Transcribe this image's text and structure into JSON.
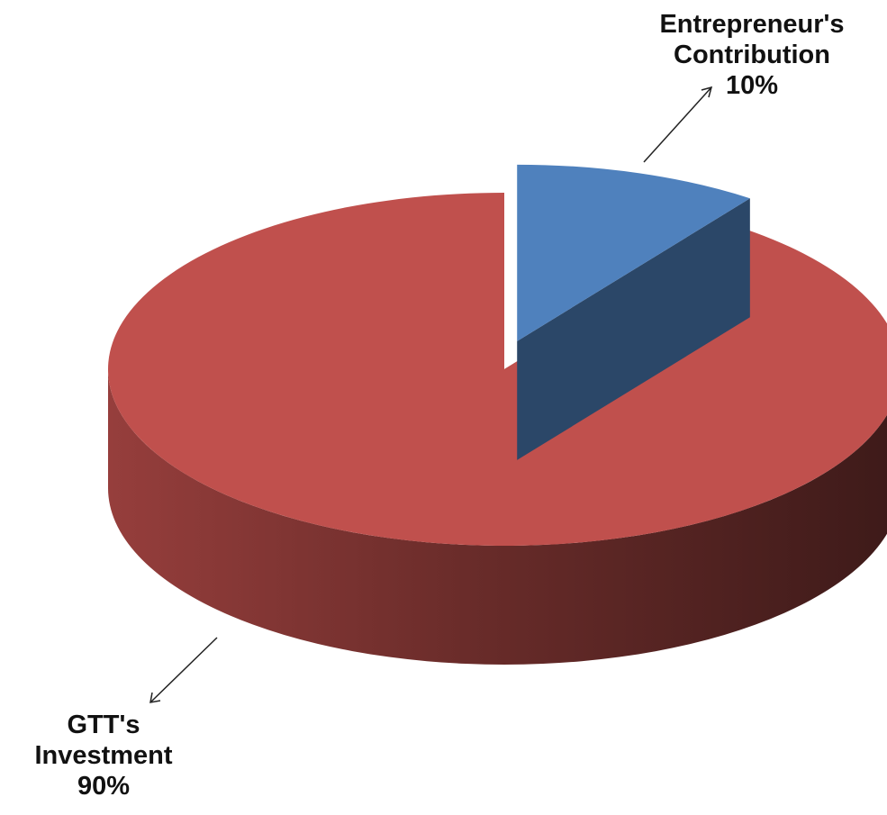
{
  "chart_data": {
    "type": "pie",
    "title": "",
    "style": "3d-exploded",
    "legend": "none",
    "slices": [
      {
        "label_lines": [
          "Entrepreneur's",
          "Contribution"
        ],
        "value": 10,
        "value_label": "10%",
        "color": "#4F81BD",
        "exploded": true
      },
      {
        "label_lines": [
          "GTT's",
          "Investment"
        ],
        "value": 90,
        "value_label": "90%",
        "color": "#C0504D",
        "exploded": false
      }
    ]
  }
}
